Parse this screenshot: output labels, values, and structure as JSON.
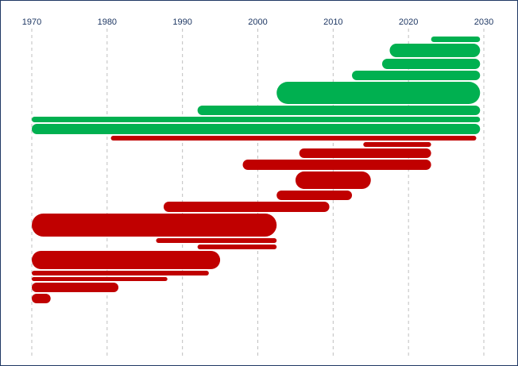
{
  "chart_data": {
    "type": "bar",
    "orientation": "horizontal",
    "subtype": "timeline",
    "title": "",
    "xlabel": "",
    "ylabel": "",
    "x_ticks": [
      "1970",
      "1980",
      "1990",
      "2000",
      "2010",
      "2020",
      "2030"
    ],
    "xlim": [
      1970,
      2030
    ],
    "grid": true,
    "legend": "none",
    "colors": {
      "green": "#00b050",
      "red": "#c00000",
      "tick_text": "#1f3864",
      "grid": "#bfbfbf",
      "frame": "#1f3864"
    },
    "bars": [
      {
        "start": 2023.0,
        "end": 2029.5,
        "thickness": 7,
        "color": "green"
      },
      {
        "start": 2017.5,
        "end": 2029.5,
        "thickness": 17,
        "color": "green"
      },
      {
        "start": 2016.5,
        "end": 2029.5,
        "thickness": 13,
        "color": "green"
      },
      {
        "start": 2012.5,
        "end": 2029.5,
        "thickness": 12,
        "color": "green"
      },
      {
        "start": 2002.5,
        "end": 2029.5,
        "thickness": 28,
        "color": "green"
      },
      {
        "start": 1992.0,
        "end": 2029.5,
        "thickness": 12,
        "color": "green"
      },
      {
        "start": 1970.0,
        "end": 2029.5,
        "thickness": 7,
        "color": "green"
      },
      {
        "start": 1970.0,
        "end": 2029.5,
        "thickness": 13,
        "color": "green"
      },
      {
        "start": 1980.5,
        "end": 2029.0,
        "thickness": 6,
        "color": "red"
      },
      {
        "start": 2014.0,
        "end": 2023.0,
        "thickness": 6,
        "color": "red"
      },
      {
        "start": 2005.5,
        "end": 2023.0,
        "thickness": 12,
        "color": "red"
      },
      {
        "start": 1998.0,
        "end": 2023.0,
        "thickness": 13,
        "color": "red"
      },
      {
        "start": 2005.0,
        "end": 2015.0,
        "thickness": 22,
        "color": "red"
      },
      {
        "start": 2002.5,
        "end": 2012.5,
        "thickness": 12,
        "color": "red"
      },
      {
        "start": 1987.5,
        "end": 2009.5,
        "thickness": 13,
        "color": "red"
      },
      {
        "start": 1970.0,
        "end": 2002.5,
        "thickness": 29,
        "color": "red"
      },
      {
        "start": 1986.5,
        "end": 2002.5,
        "thickness": 6,
        "color": "red"
      },
      {
        "start": 1992.0,
        "end": 2002.5,
        "thickness": 6,
        "color": "red"
      },
      {
        "start": 1970.0,
        "end": 1995.0,
        "thickness": 23,
        "color": "red"
      },
      {
        "start": 1970.0,
        "end": 1993.5,
        "thickness": 6,
        "color": "red"
      },
      {
        "start": 1970.0,
        "end": 1988.0,
        "thickness": 5,
        "color": "red"
      },
      {
        "start": 1970.0,
        "end": 1981.5,
        "thickness": 12,
        "color": "red"
      },
      {
        "start": 1970.0,
        "end": 1972.5,
        "thickness": 12,
        "color": "red"
      }
    ]
  }
}
